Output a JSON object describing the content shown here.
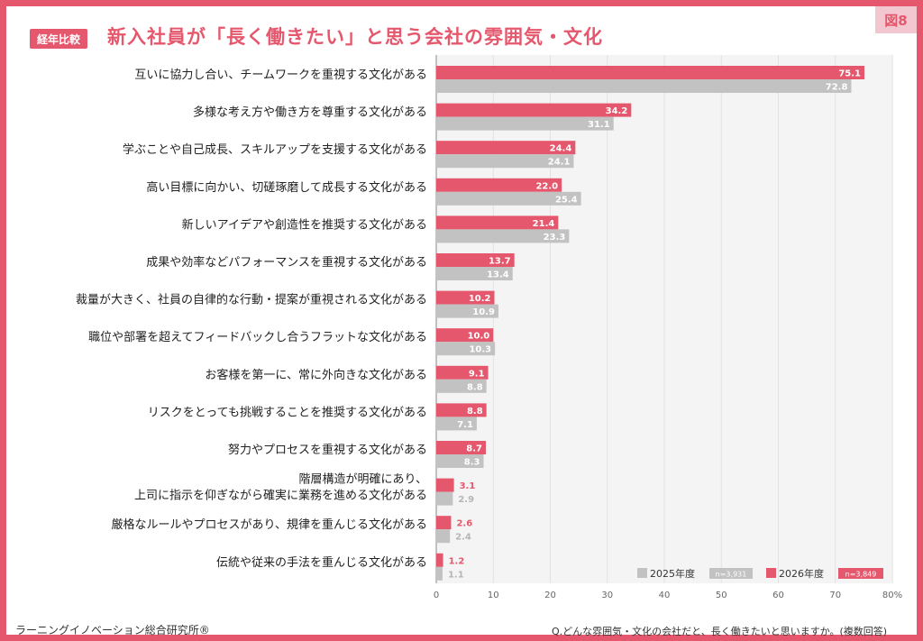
{
  "header": {
    "badge": "経年比較",
    "title": "新入社員が「長く働きたい」と思う会社の雰囲気・文化",
    "figure_no": "図8"
  },
  "footer": {
    "publisher": "ラーニングイノベーション総合研究所®",
    "question": "Q.どんな雰囲気・文化の会社だと、長く働きたいと思いますか。(複数回答)"
  },
  "colors": {
    "y2026": "#e5576c",
    "y2025": "#c2c2c2",
    "frame": "#e5576c"
  },
  "chart_data": {
    "type": "bar",
    "orientation": "horizontal",
    "title": "新入社員が「長く働きたい」と思う会社の雰囲気・文化",
    "xlim": [
      0,
      80
    ],
    "x_ticks": [
      "0",
      "10",
      "20",
      "30",
      "40",
      "50",
      "60",
      "70",
      "80%"
    ],
    "grid": true,
    "legend_position": "bottom-right",
    "categories": [
      "互いに協力し合い、チームワークを重視する文化がある",
      "多様な考え方や働き方を尊重する文化がある",
      "学ぶことや自己成長、スキルアップを支援する文化がある",
      "高い目標に向かい、切磋琢磨して成長する文化がある",
      "新しいアイデアや創造性を推奨する文化がある",
      "成果や効率などパフォーマンスを重視する文化がある",
      "裁量が大きく、社員の自律的な行動・提案が重視される文化がある",
      "職位や部署を超えてフィードバックし合うフラットな文化がある",
      "お客様を第一に、常に外向きな文化がある",
      "リスクをとっても挑戦することを推奨する文化がある",
      "努力やプロセスを重視する文化がある",
      [
        "階層構造が明確にあり、",
        "上司に指示を仰ぎながら確実に業務を進める文化がある"
      ],
      "厳格なルールやプロセスがあり、規律を重んじる文化がある",
      "伝統や従来の手法を重んじる文化がある"
    ],
    "series": [
      {
        "name": "2026年度",
        "n": "n=3,849",
        "values": [
          75.1,
          34.2,
          24.4,
          22.0,
          21.4,
          13.7,
          10.2,
          10.0,
          9.1,
          8.8,
          8.7,
          3.1,
          2.6,
          1.2
        ],
        "labels": [
          "75.1",
          "34.2",
          "24.4",
          "22.0",
          "21.4",
          "13.7",
          "10.2",
          "10.0",
          "9.1",
          "8.8",
          "8.7",
          "3.1",
          "2.6",
          "1.2"
        ]
      },
      {
        "name": "2025年度",
        "n": "n=3,931",
        "values": [
          72.8,
          31.1,
          24.1,
          25.4,
          23.3,
          13.4,
          10.9,
          10.3,
          8.8,
          7.1,
          8.3,
          2.9,
          2.4,
          1.1
        ],
        "labels": [
          "72.8",
          "31.1",
          "24.1",
          "25.4",
          "23.3",
          "13.4",
          "10.9",
          "10.3",
          "8.8",
          "7.1",
          "8.3",
          "2.9",
          "2.4",
          "1.1"
        ]
      }
    ]
  }
}
